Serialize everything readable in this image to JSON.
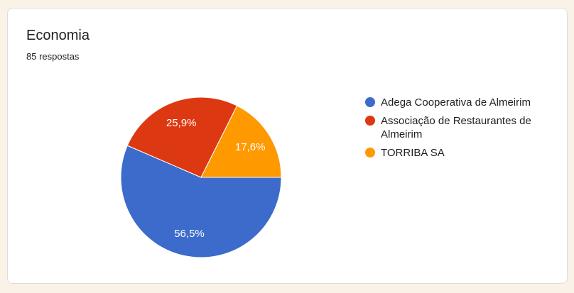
{
  "page": {
    "background": "#FAF2E6"
  },
  "card": {
    "background": "#FFFFFF",
    "border_color": "#DADCE0"
  },
  "chart_data": {
    "type": "pie",
    "title": "Economia",
    "subtitle": "85 respostas",
    "labels": [
      "Adega Cooperativa de Almeirim",
      "Associação de Restaurantes de Almeirim",
      "TORRIBA SA"
    ],
    "values_pct": [
      56.5,
      25.9,
      17.6
    ],
    "slice_labels": [
      "56,5%",
      "25,9%",
      "17,6%"
    ],
    "colors": [
      "#3C6BCB",
      "#DC3912",
      "#FF9900"
    ],
    "slice_label_color": "#FFFFFF",
    "slice_border_color": "#FFFFFF",
    "start_position": "3-oclock-clockwise",
    "legend_position": "right",
    "text_color": "#202124"
  }
}
